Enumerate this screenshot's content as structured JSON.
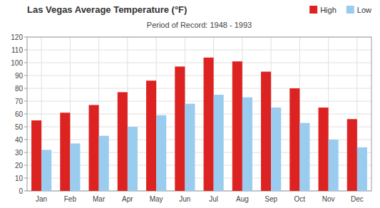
{
  "chart_data": {
    "type": "bar",
    "title": "Las Vegas Average Temperature (°F)",
    "subtitle": "Period of Record: 1948 - 1993",
    "categories": [
      "Jan",
      "Feb",
      "Mar",
      "Apr",
      "May",
      "Jun",
      "Jul",
      "Aug",
      "Sep",
      "Oct",
      "Nov",
      "Dec"
    ],
    "series": [
      {
        "name": "High",
        "color": "#dd2222",
        "values": [
          55,
          61,
          67,
          77,
          86,
          97,
          104,
          101,
          93,
          80,
          65,
          56
        ]
      },
      {
        "name": "Low",
        "color": "#99ccee",
        "values": [
          32,
          37,
          43,
          50,
          59,
          68,
          75,
          73,
          65,
          53,
          40,
          34
        ]
      }
    ],
    "ylim": [
      0,
      120
    ],
    "yticks": [
      0,
      10,
      20,
      30,
      40,
      50,
      60,
      70,
      80,
      90,
      100,
      110,
      120
    ],
    "grid": true,
    "legend": "top-right"
  }
}
